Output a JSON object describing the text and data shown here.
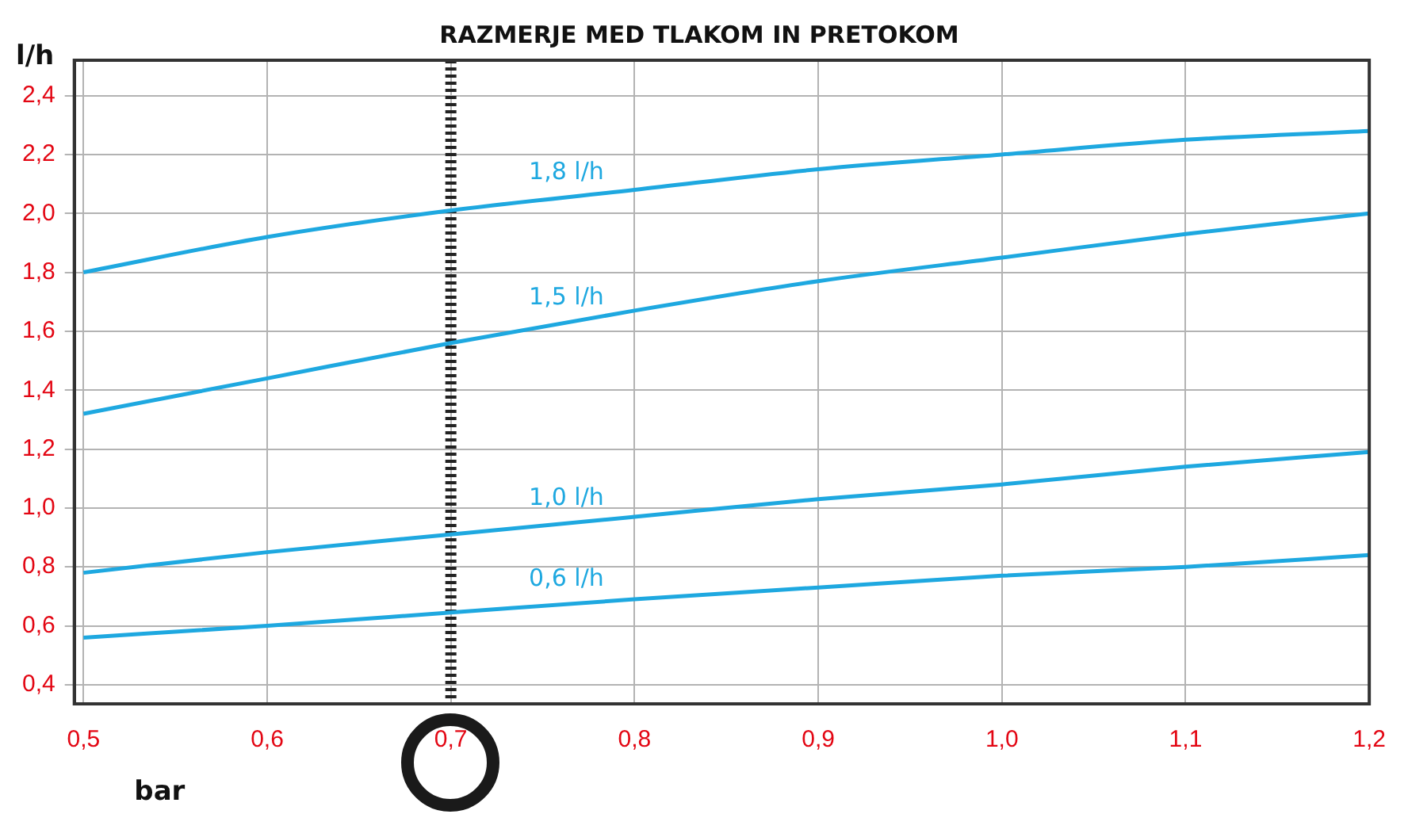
{
  "chart_data": {
    "type": "line",
    "title": "RAZMERJE MED TLAKOM IN PRETOKOM",
    "xlabel": "bar",
    "ylabel": "l/h",
    "x": [
      0.5,
      0.6,
      0.7,
      0.8,
      0.9,
      1.0,
      1.1,
      1.2
    ],
    "series": [
      {
        "name": "1,8 l/h",
        "color": "#1ea8e0",
        "values": [
          1.8,
          1.92,
          2.01,
          2.08,
          2.15,
          2.2,
          2.25,
          2.28
        ]
      },
      {
        "name": "1,5 l/h",
        "color": "#1ea8e0",
        "values": [
          1.32,
          1.44,
          1.56,
          1.67,
          1.77,
          1.85,
          1.93,
          2.0
        ]
      },
      {
        "name": "1,0 l/h",
        "color": "#1ea8e0",
        "values": [
          0.78,
          0.85,
          0.91,
          0.97,
          1.03,
          1.08,
          1.14,
          1.19
        ]
      },
      {
        "name": "0,6 l/h",
        "color": "#1ea8e0",
        "values": [
          0.56,
          0.6,
          0.645,
          0.69,
          0.73,
          0.77,
          0.8,
          0.84
        ]
      }
    ],
    "xlim": [
      0.495,
      1.2
    ],
    "ylim": [
      0.335,
      2.52
    ],
    "xticks": [
      {
        "value": 0.5,
        "label": "0,5"
      },
      {
        "value": 0.6,
        "label": "0,6"
      },
      {
        "value": 0.7,
        "label": "0,7"
      },
      {
        "value": 0.8,
        "label": "0,8"
      },
      {
        "value": 0.9,
        "label": "0,9"
      },
      {
        "value": 1.0,
        "label": "1,0"
      },
      {
        "value": 1.1,
        "label": "1,1"
      },
      {
        "value": 1.2,
        "label": "1,2"
      }
    ],
    "yticks": [
      {
        "value": 0.4,
        "label": "0,4"
      },
      {
        "value": 0.6,
        "label": "0,6"
      },
      {
        "value": 0.8,
        "label": "0,8"
      },
      {
        "value": 1.0,
        "label": "1,0"
      },
      {
        "value": 1.2,
        "label": "1,2"
      },
      {
        "value": 1.4,
        "label": "1,4"
      },
      {
        "value": 1.6,
        "label": "1,6"
      },
      {
        "value": 1.8,
        "label": "1,8"
      },
      {
        "value": 2.0,
        "label": "2,0"
      },
      {
        "value": 2.2,
        "label": "2,2"
      },
      {
        "value": 2.4,
        "label": "2,4"
      }
    ],
    "ref_lines": [
      {
        "axis": "x",
        "value": 0.7,
        "color": "#222222",
        "line_style": "dashed"
      }
    ],
    "grid": true,
    "legend": false,
    "marker": "none",
    "line_style": "solid"
  }
}
